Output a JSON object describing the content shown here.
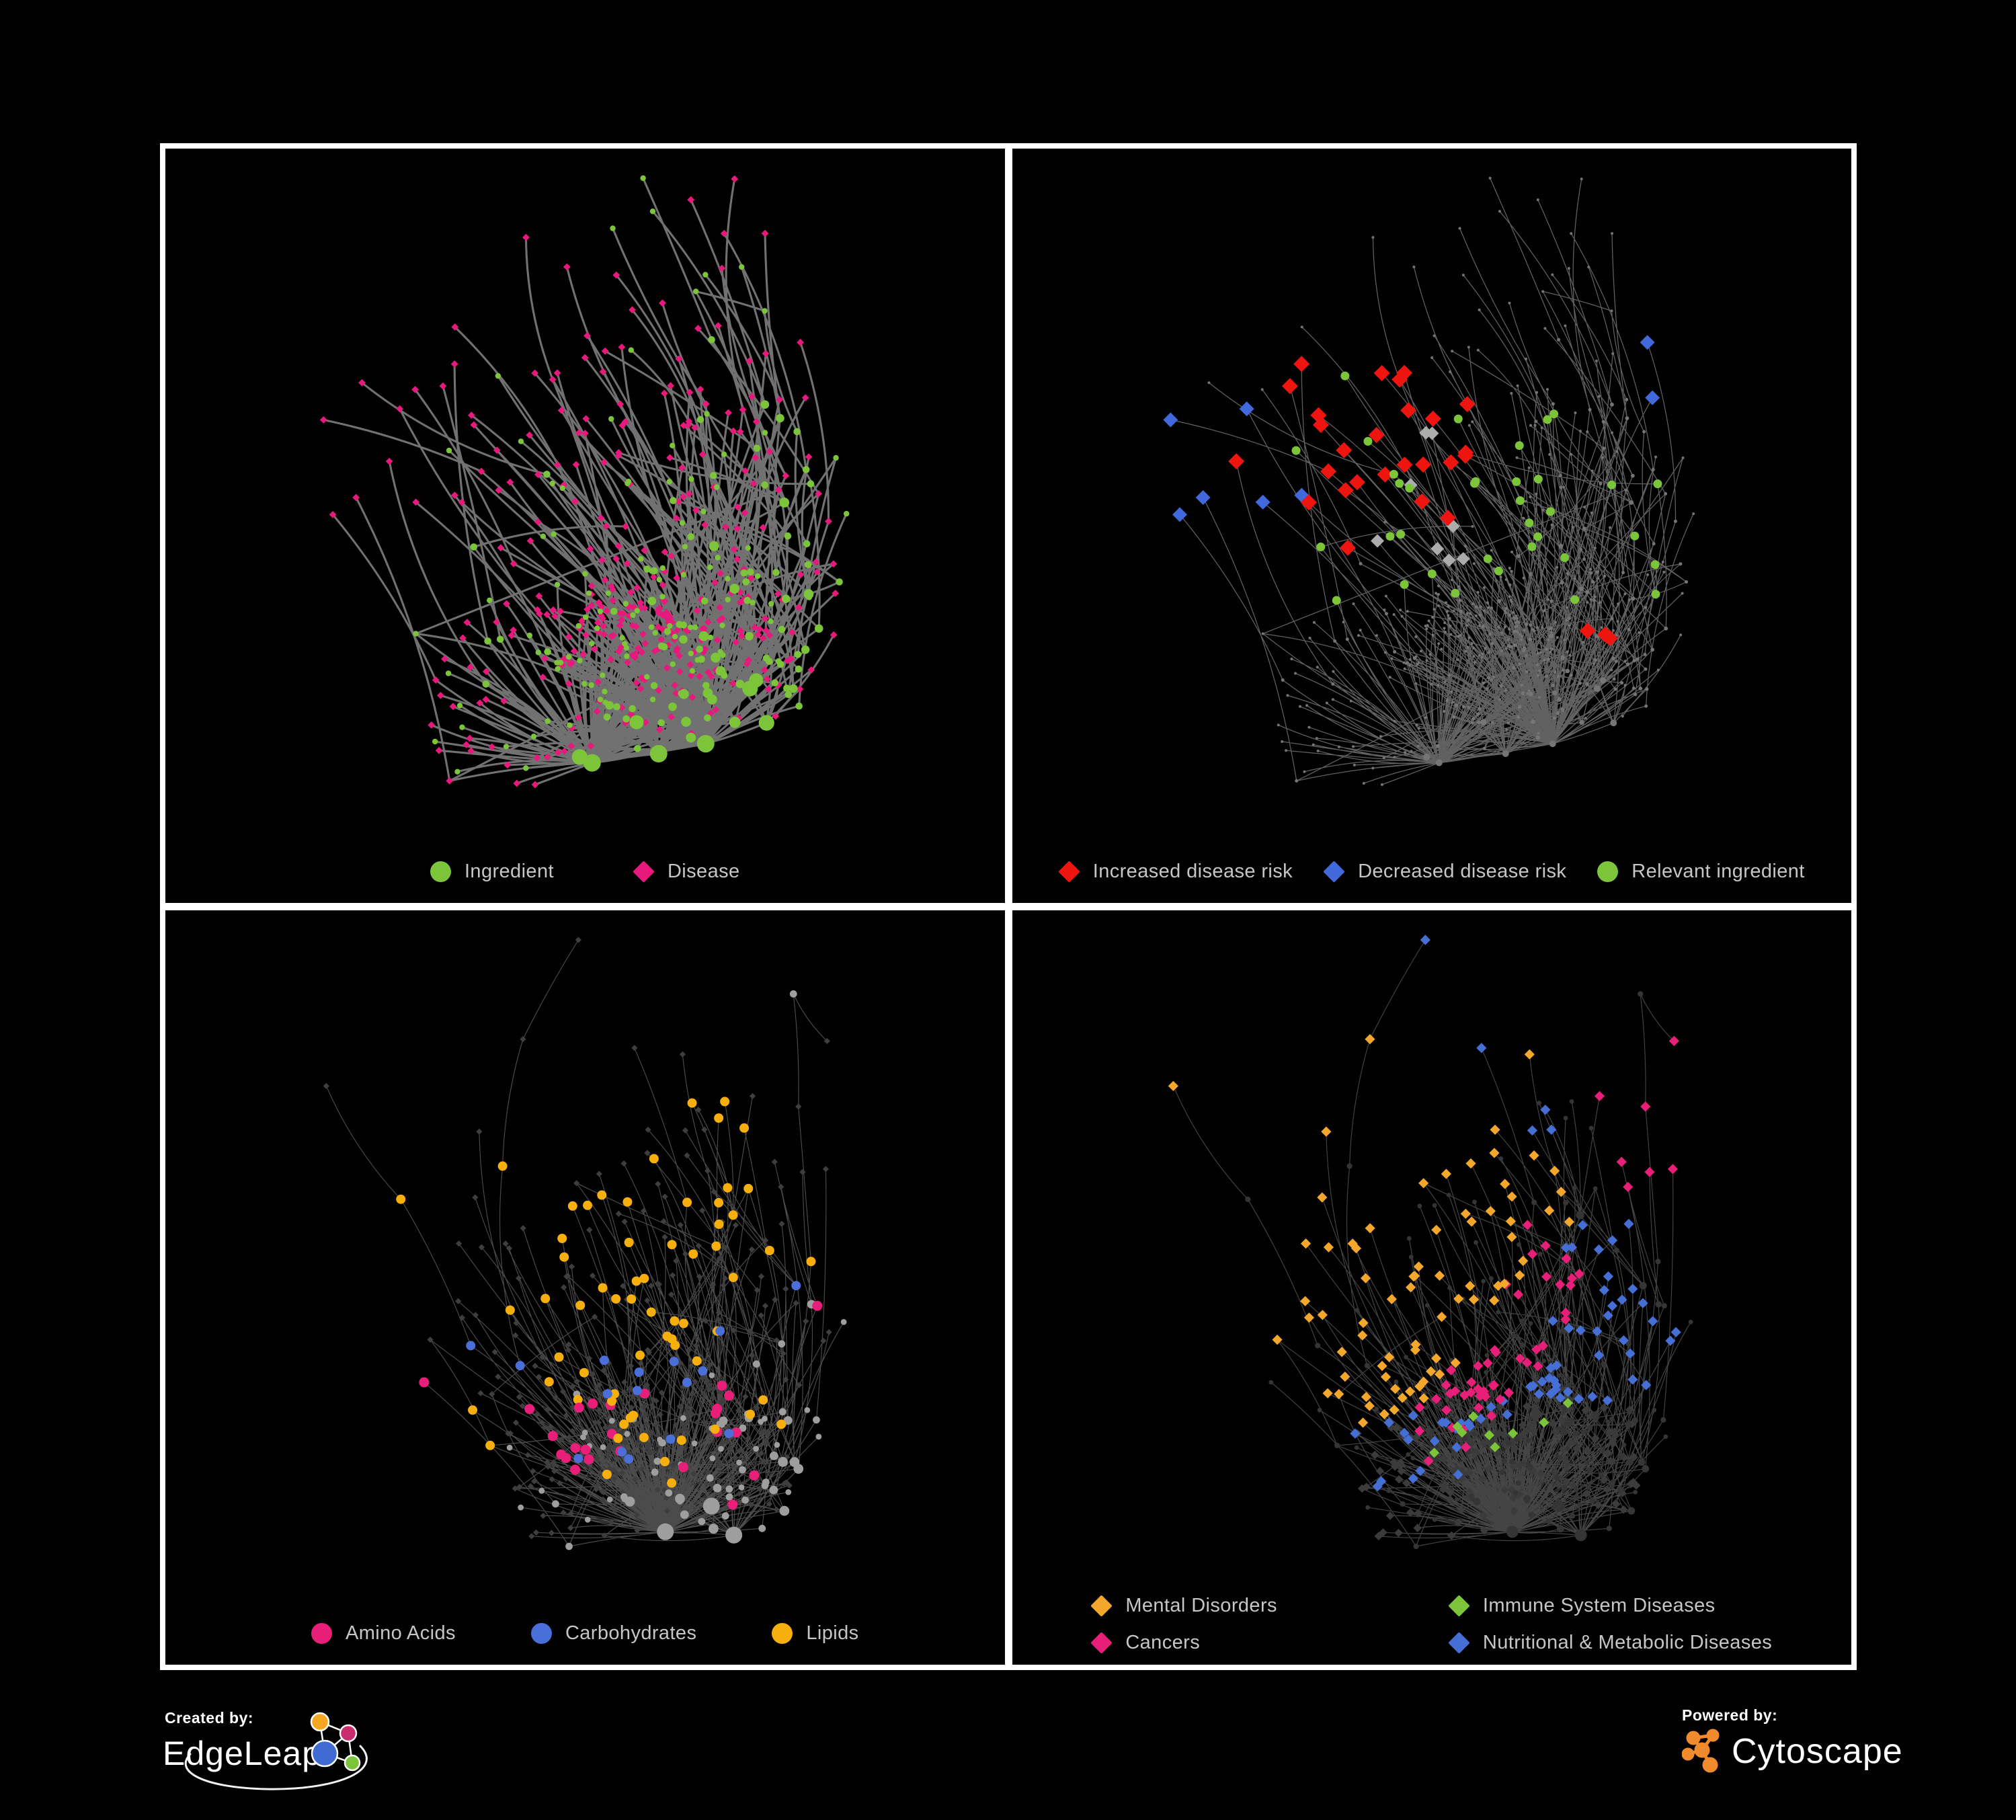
{
  "panels": [
    {
      "id": "ingredient-disease",
      "legend": [
        {
          "label": "Ingredient",
          "color": "#7cc43a",
          "shape": "circle"
        },
        {
          "label": "Disease",
          "color": "#e8197d",
          "shape": "diamond"
        }
      ]
    },
    {
      "id": "disease-risk",
      "legend": [
        {
          "label": "Increased disease risk",
          "color": "#ee1511",
          "shape": "diamond"
        },
        {
          "label": "Decreased disease risk",
          "color": "#4169dc",
          "shape": "diamond"
        },
        {
          "label": "Relevant ingredient",
          "color": "#7cc43a",
          "shape": "circle"
        }
      ]
    },
    {
      "id": "compound-classes",
      "legend": [
        {
          "label": "Amino Acids",
          "color": "#e81f78",
          "shape": "circle"
        },
        {
          "label": "Carbohydrates",
          "color": "#4a6fd8",
          "shape": "circle"
        },
        {
          "label": "Lipids",
          "color": "#f7af0e",
          "shape": "circle"
        }
      ]
    },
    {
      "id": "disease-classes",
      "legend": [
        {
          "label": "Mental Disorders",
          "color": "#f3a72c",
          "shape": "diamond"
        },
        {
          "label": "Immune System Diseases",
          "color": "#7cc43a",
          "shape": "diamond"
        },
        {
          "label": "Cancers",
          "color": "#e81f78",
          "shape": "diamond"
        },
        {
          "label": "Nutritional & Metabolic Diseases",
          "color": "#466fd5",
          "shape": "diamond"
        }
      ]
    }
  ],
  "footer": {
    "created_by": "Created by:",
    "brand": "EdgeLeap",
    "powered_by": "Powered by:",
    "engine": "Cytoscape",
    "cytoscape_color": "#ef8b2d",
    "edgeleap_node_colors": {
      "orange": "#f5a623",
      "magenta": "#c92d6e",
      "blue": "#3f6ad1",
      "green": "#7cc43a"
    }
  }
}
